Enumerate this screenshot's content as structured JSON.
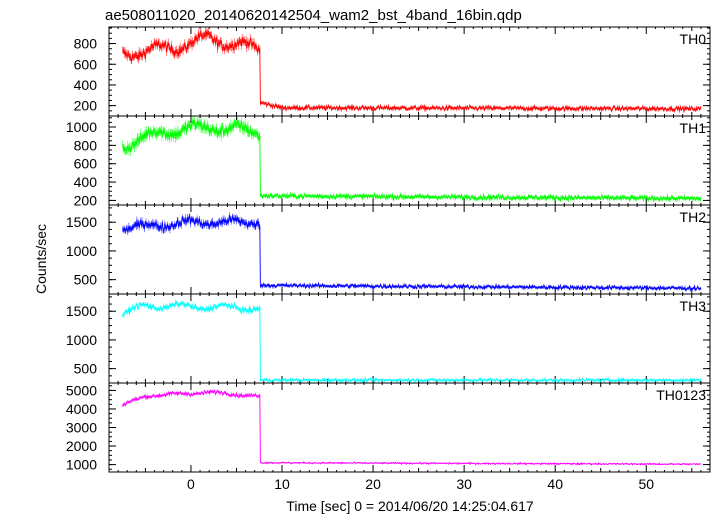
{
  "title": "ae508011020_20140620142504_wam2_bst_4band_16bin.qdp",
  "ylabel": "Counts/sec",
  "xlabel": "Time [sec] 0 = 2014/06/20 14:25:04.617",
  "chart_data": {
    "type": "line",
    "title": "ae508011020_20140620142504_wam2_bst_4band_16bin.qdp",
    "xlabel": "Time [sec] 0 = 2014/06/20 14:25:04.617",
    "ylabel": "Counts/sec",
    "xlim": [
      -9,
      57
    ],
    "x_ticks": [
      0,
      10,
      20,
      30,
      40,
      50
    ],
    "x_tick_labels": [
      "0",
      "10",
      "20",
      "30",
      "40",
      "50"
    ],
    "drop_time": 7.6,
    "x_start": -7.5,
    "x_end": 56,
    "grid": false,
    "panels": [
      {
        "name": "TH0",
        "color": "#ff0000",
        "ylim": [
          100,
          960
        ],
        "yticks": [
          200,
          400,
          600,
          800
        ],
        "ytick_labels": [
          "200",
          "400",
          "600",
          "800"
        ],
        "pre_level": [
          [
            -7.5,
            700
          ],
          [
            -2,
            760
          ],
          [
            2,
            850
          ],
          [
            7.3,
            750
          ]
        ],
        "pre_noise": 60,
        "post_level": [
          [
            7.6,
            230
          ],
          [
            10,
            180
          ],
          [
            56,
            170
          ]
        ],
        "post_noise": 25
      },
      {
        "name": "TH1",
        "color": "#00ff00",
        "ylim": [
          150,
          1120
        ],
        "yticks": [
          200,
          400,
          600,
          800,
          1000
        ],
        "ytick_labels": [
          "200",
          "400",
          "600",
          "800",
          "1000"
        ],
        "pre_level": [
          [
            -7.5,
            800
          ],
          [
            -3,
            950
          ],
          [
            2,
            1000
          ],
          [
            7.3,
            950
          ]
        ],
        "pre_noise": 75,
        "post_level": [
          [
            7.6,
            250
          ],
          [
            56,
            220
          ]
        ],
        "post_noise": 30
      },
      {
        "name": "TH2",
        "color": "#0000ff",
        "ylim": [
          250,
          1800
        ],
        "yticks": [
          500,
          1000,
          1500
        ],
        "ytick_labels": [
          "500",
          "1000",
          "1500"
        ],
        "pre_level": [
          [
            -7.5,
            1400
          ],
          [
            0,
            1500
          ],
          [
            7.3,
            1500
          ]
        ],
        "pre_noise": 90,
        "post_level": [
          [
            7.6,
            400
          ],
          [
            56,
            350
          ]
        ],
        "post_noise": 40
      },
      {
        "name": "TH3",
        "color": "#00ffff",
        "ylim": [
          250,
          1800
        ],
        "yticks": [
          500,
          1000,
          1500
        ],
        "ytick_labels": [
          "500",
          "1000",
          "1500"
        ],
        "pre_level": [
          [
            -7.5,
            1450
          ],
          [
            -5,
            1600
          ],
          [
            7.3,
            1550
          ]
        ],
        "pre_noise": 55,
        "post_level": [
          [
            7.6,
            300
          ],
          [
            56,
            300
          ]
        ],
        "post_noise": 30
      },
      {
        "name": "TH0123",
        "color": "#ff00ff",
        "ylim": [
          600,
          5400
        ],
        "yticks": [
          1000,
          2000,
          3000,
          4000,
          5000
        ],
        "ytick_labels": [
          "1000",
          "2000",
          "3000",
          "4000",
          "5000"
        ],
        "pre_level": [
          [
            -7.5,
            4200
          ],
          [
            -5,
            4700
          ],
          [
            2,
            4900
          ],
          [
            7.3,
            4700
          ]
        ],
        "pre_noise": 120,
        "post_level": [
          [
            7.6,
            1100
          ],
          [
            56,
            1020
          ]
        ],
        "post_noise": 50
      }
    ]
  }
}
